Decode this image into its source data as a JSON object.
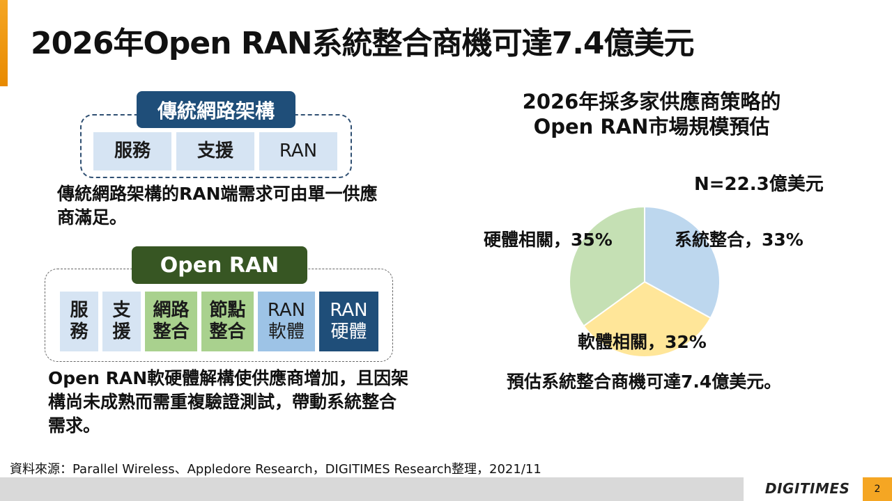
{
  "title": "2026年Open RAN系統整合商機可達7.4億美元",
  "traditional": {
    "label": "傳統網路架構",
    "cells": [
      "服務",
      "支援",
      "RAN"
    ],
    "description": "傳統網路架構的RAN端需求可由單一供應商滿足。"
  },
  "open_ran": {
    "label": "Open RAN",
    "cells": [
      {
        "line1": "服",
        "line2": "務"
      },
      {
        "line1": "支",
        "line2": "援"
      },
      {
        "line1": "網路",
        "line2": "整合"
      },
      {
        "line1": "節點",
        "line2": "整合"
      },
      {
        "line1": "RAN",
        "line2": "軟體"
      },
      {
        "line1": "RAN",
        "line2": "硬體"
      }
    ],
    "description": "Open RAN軟硬體解構使供應商增加，且因架構尚未成熟而需重複驗證測試，帶動系統整合需求。"
  },
  "chart_data": {
    "type": "pie",
    "title_line1": "2026年採多家供應商策略的",
    "title_line2": "Open RAN市場規模預估",
    "n_label": "N=22.3億美元",
    "slices": [
      {
        "label": "系統整合，33%",
        "value": 33,
        "color": "#bdd7ee"
      },
      {
        "label": "軟體相關，32%",
        "value": 32,
        "color": "#ffe699"
      },
      {
        "label": "硬體相關，35%",
        "value": 35,
        "color": "#c5e0b4"
      }
    ],
    "conclusion": "預估系統整合商機可達7.4億美元。"
  },
  "source": "資料來源：Parallel Wireless、Appledore Research，DIGITIMES Research整理，2021/11",
  "footer": {
    "logo": "DIGITIMES",
    "page": "2",
    "accent_color": "#f5a623"
  }
}
